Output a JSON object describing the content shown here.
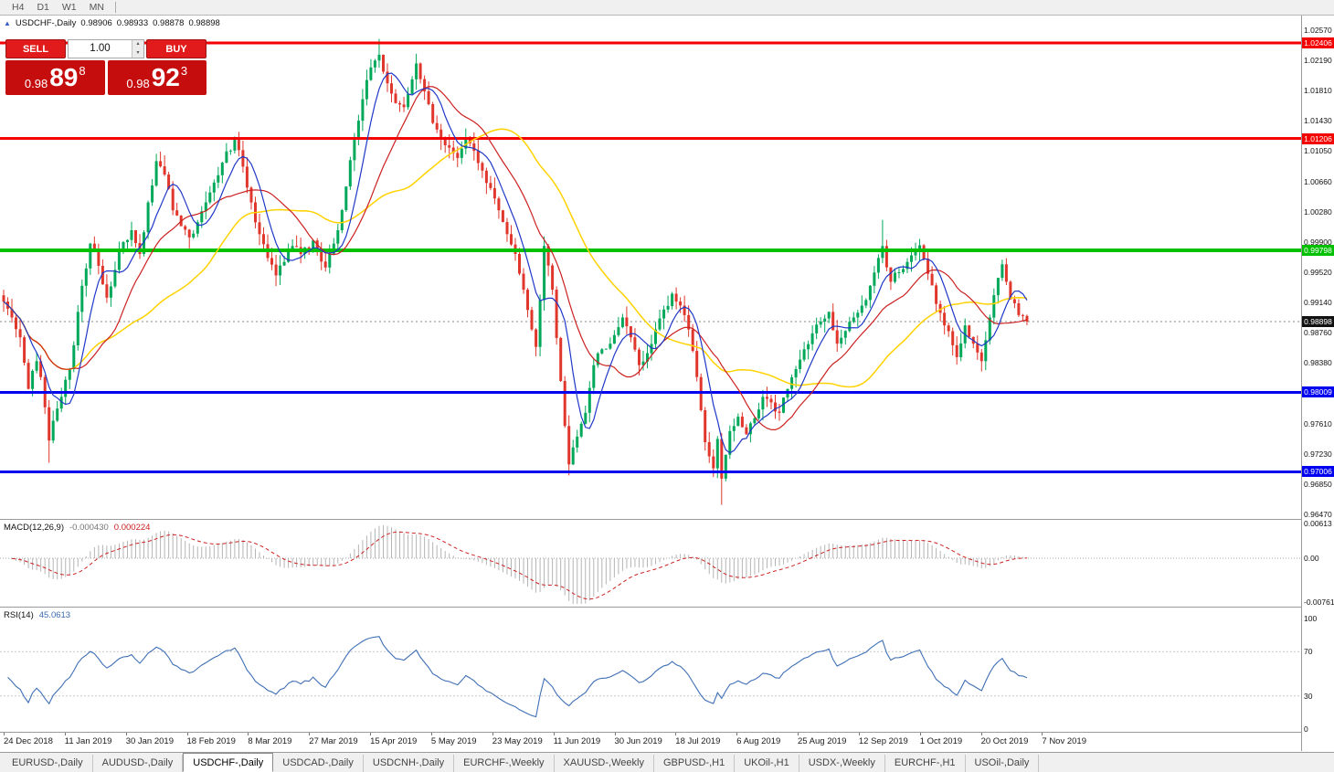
{
  "toolbar": {
    "timeframes": [
      "H4",
      "D1",
      "W1",
      "MN"
    ]
  },
  "chart_header": {
    "title": "USDCHF-,Daily",
    "open": "0.98906",
    "high": "0.98933",
    "low": "0.98878",
    "close": "0.98898"
  },
  "trade_panel": {
    "sell_label": "SELL",
    "buy_label": "BUY",
    "volume": "1.00",
    "sell_price": {
      "prefix": "0.98",
      "big": "89",
      "sup": "8"
    },
    "buy_price": {
      "prefix": "0.98",
      "big": "92",
      "sup": "3"
    }
  },
  "price_axis": {
    "labels": [
      "1.02570",
      "1.02190",
      "1.01810",
      "1.01430",
      "1.01050",
      "1.00660",
      "1.00280",
      "0.99900",
      "0.99520",
      "0.99140",
      "0.98760",
      "0.98380",
      "0.97990",
      "0.97610",
      "0.97230",
      "0.96850",
      "0.96470"
    ],
    "top_value": 1.0257,
    "bottom_value": 0.9647
  },
  "hlines": [
    {
      "value": 1.02406,
      "label": "1.02406",
      "color": "#f40000",
      "width": 3
    },
    {
      "value": 1.01206,
      "label": "1.01206",
      "color": "#f40000",
      "width": 3
    },
    {
      "value": 0.99798,
      "label": "0.99798",
      "color": "#00c000",
      "width": 4
    },
    {
      "value": 0.98009,
      "label": "0.98009",
      "color": "#0000f0",
      "width": 3
    },
    {
      "value": 0.97006,
      "label": "0.97006",
      "color": "#0000f0",
      "width": 3
    }
  ],
  "current_price": {
    "value": 0.98898,
    "label": "0.98898",
    "color": "#111111"
  },
  "date_axis": [
    "24 Dec 2018",
    "11 Jan 2019",
    "30 Jan 2019",
    "18 Feb 2019",
    "8 Mar 2019",
    "27 Mar 2019",
    "15 Apr 2019",
    "5 May 2019",
    "23 May 2019",
    "11 Jun 2019",
    "30 Jun 2019",
    "18 Jul 2019",
    "6 Aug 2019",
    "25 Aug 2019",
    "12 Sep 2019",
    "1 Oct 2019",
    "20 Oct 2019",
    "7 Nov 2019"
  ],
  "macd": {
    "title": "MACD(12,26,9)",
    "value_main": "-0.000430",
    "value_signal": "0.000224",
    "axis_labels": [
      "0.00613",
      "0.00",
      "-0.0076125"
    ],
    "axis_values": [
      0.00613,
      0,
      -0.0076125
    ],
    "params": {
      "fast": 12,
      "slow": 26,
      "signal": 9
    }
  },
  "rsi": {
    "title": "RSI(14)",
    "value": "45.0613",
    "period": 14,
    "axis_labels": [
      "100",
      "70",
      "30",
      "0"
    ],
    "axis_values": [
      100,
      70,
      30,
      0
    ],
    "levels": [
      70,
      30
    ]
  },
  "tabs": [
    "EURUSD-,Daily",
    "AUDUSD-,Daily",
    "USDCHF-,Daily",
    "USDCAD-,Daily",
    "USDCNH-,Daily",
    "EURCHF-,Weekly",
    "XAUUSD-,Weekly",
    "GBPUSD-,H1",
    "UKOil-,H1",
    "USDX-,Weekly",
    "EURCHF-,H1",
    "USOil-,Daily"
  ],
  "active_tab": "USDCHF-,Daily",
  "chart_data": {
    "type": "candlestick",
    "symbol": "USDCHF",
    "period": "Daily",
    "price_range": [
      0.9647,
      1.0257
    ],
    "candle_count": 249,
    "up_color": "#00a85a",
    "down_color": "#e0362b",
    "close_anchors": [
      [
        0,
        0.9915
      ],
      [
        2,
        0.9895
      ],
      [
        4,
        0.987
      ],
      [
        6,
        0.9805
      ],
      [
        8,
        0.984
      ],
      [
        9,
        0.982
      ],
      [
        11,
        0.974
      ],
      [
        12,
        0.9765
      ],
      [
        14,
        0.9795
      ],
      [
        16,
        0.983
      ],
      [
        17,
        0.986
      ],
      [
        19,
        0.9935
      ],
      [
        21,
        0.9988
      ],
      [
        23,
        0.996
      ],
      [
        25,
        0.992
      ],
      [
        27,
        0.9955
      ],
      [
        29,
        0.999
      ],
      [
        31,
        1.0005
      ],
      [
        33,
        0.9975
      ],
      [
        35,
        1.004
      ],
      [
        37,
        1.0092
      ],
      [
        39,
        1.0075
      ],
      [
        41,
        1.003
      ],
      [
        43,
        1.001
      ],
      [
        45,
        0.9996
      ],
      [
        47,
        1.0015
      ],
      [
        49,
        1.004
      ],
      [
        51,
        1.0065
      ],
      [
        53,
        1.009
      ],
      [
        56,
        1.012
      ],
      [
        58,
        1.0085
      ],
      [
        60,
        1.004
      ],
      [
        62,
        1.0
      ],
      [
        64,
        0.997
      ],
      [
        66,
        0.9948
      ],
      [
        68,
        0.9965
      ],
      [
        70,
        0.9985
      ],
      [
        72,
        0.9975
      ],
      [
        75,
        0.9992
      ],
      [
        78,
        0.9958
      ],
      [
        81,
        1.0005
      ],
      [
        83,
        1.006
      ],
      [
        85,
        1.012
      ],
      [
        87,
        1.017
      ],
      [
        89,
        1.021
      ],
      [
        91,
        1.0226
      ],
      [
        93,
        1.019
      ],
      [
        95,
        1.0165
      ],
      [
        97,
        1.016
      ],
      [
        99,
        1.0195
      ],
      [
        100,
        1.0215
      ],
      [
        102,
        1.018
      ],
      [
        104,
        1.014
      ],
      [
        107,
        1.0112
      ],
      [
        110,
        1.0096
      ],
      [
        112,
        1.0122
      ],
      [
        114,
        1.0105
      ],
      [
        116,
        1.008
      ],
      [
        118,
        1.0058
      ],
      [
        120,
        1.003
      ],
      [
        122,
        1.0
      ],
      [
        124,
        0.9975
      ],
      [
        126,
        0.993
      ],
      [
        128,
        0.988
      ],
      [
        129,
        0.9858
      ],
      [
        131,
        0.9985
      ],
      [
        133,
        0.993
      ],
      [
        135,
        0.9815
      ],
      [
        137,
        0.971
      ],
      [
        139,
        0.9745
      ],
      [
        141,
        0.9775
      ],
      [
        143,
        0.9835
      ],
      [
        145,
        0.9855
      ],
      [
        147,
        0.9862
      ],
      [
        150,
        0.9895
      ],
      [
        152,
        0.987
      ],
      [
        154,
        0.9835
      ],
      [
        156,
        0.985
      ],
      [
        158,
        0.988
      ],
      [
        160,
        0.9905
      ],
      [
        162,
        0.9925
      ],
      [
        164,
        0.991
      ],
      [
        166,
        0.988
      ],
      [
        168,
        0.982
      ],
      [
        170,
        0.9738
      ],
      [
        172,
        0.9705
      ],
      [
        173,
        0.9742
      ],
      [
        174,
        0.9692
      ],
      [
        176,
        0.9752
      ],
      [
        178,
        0.977
      ],
      [
        180,
        0.9748
      ],
      [
        182,
        0.9768
      ],
      [
        184,
        0.9795
      ],
      [
        186,
        0.9788
      ],
      [
        188,
        0.9775
      ],
      [
        190,
        0.9805
      ],
      [
        192,
        0.983
      ],
      [
        194,
        0.9855
      ],
      [
        196,
        0.9875
      ],
      [
        198,
        0.989
      ],
      [
        200,
        0.9902
      ],
      [
        202,
        0.9862
      ],
      [
        204,
        0.9878
      ],
      [
        206,
        0.9895
      ],
      [
        208,
        0.991
      ],
      [
        210,
        0.9935
      ],
      [
        212,
        0.997
      ],
      [
        213,
        0.9985
      ],
      [
        215,
        0.994
      ],
      [
        217,
        0.9952
      ],
      [
        219,
        0.9965
      ],
      [
        221,
        0.998
      ],
      [
        222,
        0.9986
      ],
      [
        224,
        0.995
      ],
      [
        226,
        0.9912
      ],
      [
        228,
        0.9885
      ],
      [
        230,
        0.986
      ],
      [
        231,
        0.9845
      ],
      [
        233,
        0.9885
      ],
      [
        235,
        0.9862
      ],
      [
        237,
        0.984
      ],
      [
        239,
        0.9895
      ],
      [
        241,
        0.9945
      ],
      [
        242,
        0.9962
      ],
      [
        244,
        0.9918
      ],
      [
        246,
        0.9898
      ],
      [
        248,
        0.98898
      ]
    ],
    "spike_wicks": [
      {
        "i": 11,
        "low": 0.9712
      },
      {
        "i": 91,
        "high": 1.0246
      },
      {
        "i": 137,
        "low": 0.9696
      },
      {
        "i": 174,
        "low": 0.9659
      },
      {
        "i": 213,
        "high": 1.0018
      },
      {
        "i": 222,
        "high": 0.9994
      }
    ],
    "moving_averages": [
      {
        "period": 40,
        "color": "#ffd200",
        "name": "slow-ma"
      },
      {
        "period": 18,
        "color": "#cc2020",
        "name": "medium-ma"
      },
      {
        "period": 7,
        "color": "#2038c8",
        "name": "fast-ma"
      }
    ]
  }
}
